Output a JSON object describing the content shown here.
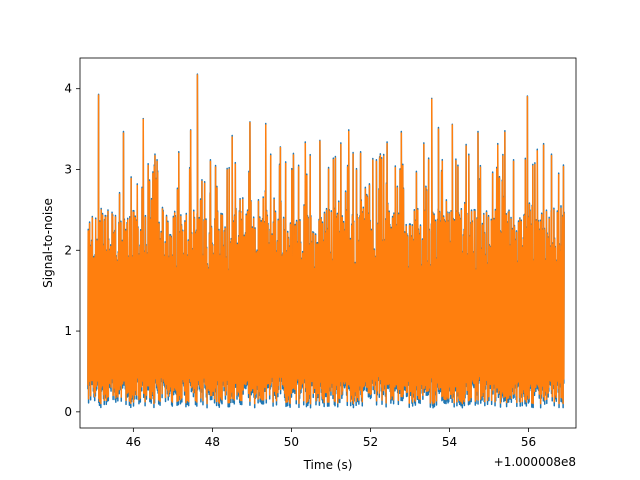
{
  "chart_data": {
    "type": "line",
    "title": "",
    "xlabel": "Time (s)",
    "ylabel": "Signal-to-noise",
    "x_offset_label": "+1.000008e8",
    "xlim": [
      44.65,
      57.2
    ],
    "ylim": [
      -0.2,
      4.38
    ],
    "x_ticks": [
      46,
      48,
      50,
      52,
      54,
      56
    ],
    "x_tick_labels": [
      "46",
      "48",
      "50",
      "52",
      "54",
      "56"
    ],
    "y_ticks": [
      0,
      1,
      2,
      3,
      4
    ],
    "y_tick_labels": [
      "0",
      "1",
      "2",
      "3",
      "4"
    ],
    "grid": false,
    "legend": "none",
    "x_start": 44.85,
    "x_end": 56.9,
    "series": [
      {
        "color": "#1f77b4",
        "peaks": [
          {
            "x": 45.12,
            "y": 3.93
          },
          {
            "x": 45.75,
            "y": 3.47
          },
          {
            "x": 46.25,
            "y": 3.63
          },
          {
            "x": 46.6,
            "y": 3.12
          },
          {
            "x": 47.15,
            "y": 3.22
          },
          {
            "x": 47.45,
            "y": 3.49
          },
          {
            "x": 47.62,
            "y": 4.18
          },
          {
            "x": 47.95,
            "y": 3.12
          },
          {
            "x": 48.5,
            "y": 3.42
          },
          {
            "x": 48.95,
            "y": 3.59
          },
          {
            "x": 49.35,
            "y": 3.57
          },
          {
            "x": 49.72,
            "y": 3.28
          },
          {
            "x": 50.05,
            "y": 3.2
          },
          {
            "x": 50.35,
            "y": 3.34
          },
          {
            "x": 50.72,
            "y": 3.36
          },
          {
            "x": 51.25,
            "y": 3.33
          },
          {
            "x": 51.45,
            "y": 3.49
          },
          {
            "x": 51.75,
            "y": 3.22
          },
          {
            "x": 52.15,
            "y": 3.12
          },
          {
            "x": 52.42,
            "y": 3.34
          },
          {
            "x": 52.78,
            "y": 3.47
          },
          {
            "x": 53.35,
            "y": 3.33
          },
          {
            "x": 53.55,
            "y": 3.88
          },
          {
            "x": 53.72,
            "y": 3.52
          },
          {
            "x": 54.07,
            "y": 3.56
          },
          {
            "x": 54.42,
            "y": 3.31
          },
          {
            "x": 54.72,
            "y": 3.47
          },
          {
            "x": 55.22,
            "y": 3.32
          },
          {
            "x": 55.4,
            "y": 3.48
          },
          {
            "x": 55.62,
            "y": 3.12
          },
          {
            "x": 55.97,
            "y": 3.91
          },
          {
            "x": 56.22,
            "y": 3.25
          },
          {
            "x": 56.38,
            "y": 3.32
          },
          {
            "x": 56.58,
            "y": 3.19
          },
          {
            "x": 56.82,
            "y": 2.55
          }
        ]
      },
      {
        "color": "#ff7f0e",
        "peaks": [
          {
            "x": 45.12,
            "y": 3.92
          },
          {
            "x": 45.75,
            "y": 3.45
          },
          {
            "x": 46.25,
            "y": 3.62
          },
          {
            "x": 46.6,
            "y": 3.1
          },
          {
            "x": 47.15,
            "y": 3.2
          },
          {
            "x": 47.45,
            "y": 3.48
          },
          {
            "x": 47.62,
            "y": 4.17
          },
          {
            "x": 47.95,
            "y": 3.1
          },
          {
            "x": 48.5,
            "y": 3.4
          },
          {
            "x": 48.95,
            "y": 3.58
          },
          {
            "x": 49.35,
            "y": 3.55
          },
          {
            "x": 49.72,
            "y": 3.27
          },
          {
            "x": 50.05,
            "y": 3.18
          },
          {
            "x": 50.35,
            "y": 3.32
          },
          {
            "x": 50.72,
            "y": 3.35
          },
          {
            "x": 51.25,
            "y": 3.31
          },
          {
            "x": 51.45,
            "y": 3.47
          },
          {
            "x": 51.75,
            "y": 3.2
          },
          {
            "x": 52.15,
            "y": 3.1
          },
          {
            "x": 52.42,
            "y": 3.32
          },
          {
            "x": 52.78,
            "y": 3.45
          },
          {
            "x": 53.35,
            "y": 3.31
          },
          {
            "x": 53.55,
            "y": 3.87
          },
          {
            "x": 53.72,
            "y": 3.5
          },
          {
            "x": 54.07,
            "y": 3.55
          },
          {
            "x": 54.42,
            "y": 3.29
          },
          {
            "x": 54.72,
            "y": 3.45
          },
          {
            "x": 55.22,
            "y": 3.3
          },
          {
            "x": 55.4,
            "y": 3.46
          },
          {
            "x": 55.62,
            "y": 3.1
          },
          {
            "x": 55.97,
            "y": 3.9
          },
          {
            "x": 56.22,
            "y": 3.23
          },
          {
            "x": 56.38,
            "y": 3.3
          },
          {
            "x": 56.58,
            "y": 3.17
          },
          {
            "x": 56.82,
            "y": 2.52
          }
        ]
      }
    ]
  }
}
